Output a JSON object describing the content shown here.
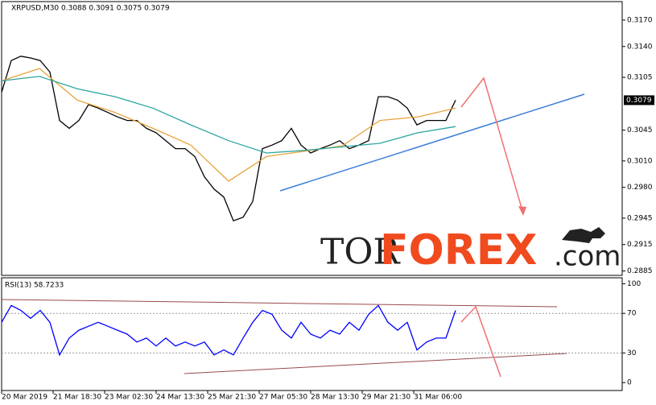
{
  "chart_data": [
    {
      "type": "line",
      "title": "XRPUSD,M30  0.3088 0.3091 0.3075 0.3079",
      "current_price": {
        "value": 0.3079,
        "label": "0.3079"
      },
      "ylim": [
        0.288,
        0.3191
      ],
      "yticks": [
        {
          "value": 0.317,
          "label": "0.3170"
        },
        {
          "value": 0.314,
          "label": "0.3140"
        },
        {
          "value": 0.3105,
          "label": "0.3105"
        },
        {
          "value": 0.3045,
          "label": "0.3045"
        },
        {
          "value": 0.301,
          "label": "0.3010"
        },
        {
          "value": 0.298,
          "label": "0.2980"
        },
        {
          "value": 0.2945,
          "label": "0.2945"
        },
        {
          "value": 0.2915,
          "label": "0.2915"
        },
        {
          "value": 0.2885,
          "label": "0.2885"
        }
      ],
      "x_labels": [
        "20 Mar 2019",
        "21 Mar 18:30",
        "23 Mar 02:30",
        "24 Mar 13:30",
        "25 Mar 21:30",
        "27 Mar 05:30",
        "28 Mar 13:30",
        "29 Mar 21:30",
        "31 Mar 06:00"
      ],
      "series": [
        {
          "color": "#000000",
          "values": [
            0.3088,
            0.3124,
            0.3129,
            0.3127,
            0.3124,
            0.3111,
            0.3056,
            0.3047,
            0.3056,
            0.3074,
            0.307,
            0.3065,
            0.306,
            0.3056,
            0.3056,
            0.3047,
            0.3042,
            0.3033,
            0.3024,
            0.3024,
            0.3015,
            0.2992,
            0.2978,
            0.2969,
            0.2942,
            0.2946,
            0.2964,
            0.3024,
            0.3028,
            0.3033,
            0.3047,
            0.3028,
            0.3019,
            0.3024,
            0.3028,
            0.3033,
            0.3024,
            0.3028,
            0.3033,
            0.3083,
            0.3083,
            0.3079,
            0.307,
            0.3051,
            0.3056,
            0.3056,
            0.3056,
            0.3079
          ]
        },
        {
          "color": "#e8a33c",
          "values": [
            0.3101,
            0.3115,
            0.3079,
            0.3065,
            0.3047,
            0.3028,
            0.2987,
            0.3015,
            0.3021,
            0.3027,
            0.3056,
            0.306,
            0.307
          ]
        },
        {
          "color": "#2aa6a0",
          "values": [
            0.3101,
            0.3106,
            0.3092,
            0.3083,
            0.307,
            0.3051,
            0.3033,
            0.3019,
            0.3022,
            0.3026,
            0.303,
            0.3042,
            0.3049
          ]
        }
      ]
    },
    {
      "type": "line",
      "title": "RSI(13) 58.7233",
      "ylim": [
        -8,
        106
      ],
      "yticks": [
        100,
        70,
        30,
        0
      ],
      "series": [
        {
          "color": "#0000ff",
          "values": [
            61,
            78,
            73,
            65,
            73,
            61,
            28,
            45,
            53,
            57,
            61,
            57,
            53,
            49,
            41,
            45,
            37,
            45,
            37,
            41,
            37,
            41,
            28,
            33,
            28,
            45,
            61,
            73,
            69,
            53,
            45,
            61,
            49,
            45,
            53,
            49,
            61,
            53,
            69,
            78,
            61,
            53,
            61,
            33,
            41,
            45,
            45,
            73
          ]
        }
      ]
    }
  ]
}
